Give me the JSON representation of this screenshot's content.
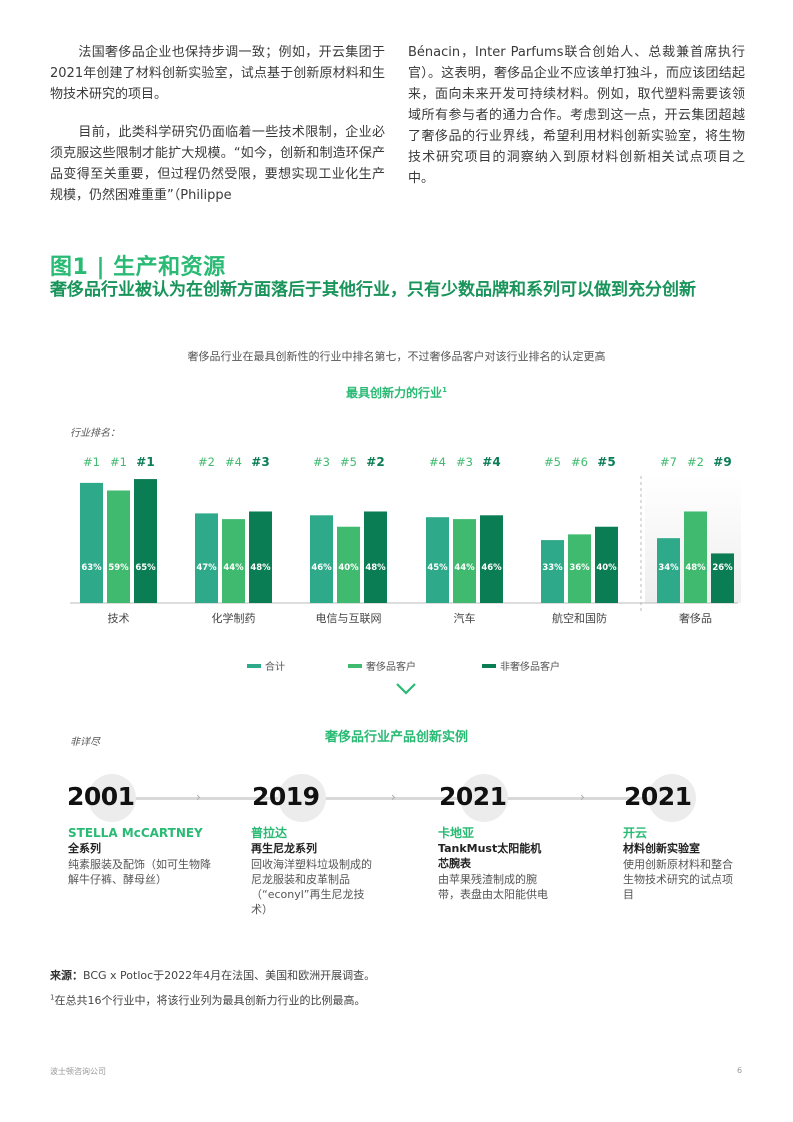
{
  "text": {
    "para_left_1": "法国奢侈品企业也保持步调一致；例如，开云集团于2021年创建了材料创新实验室，试点基于创新原材料和生物技术研究的项目。",
    "para_left_2": "目前，此类科学研究仍面临着一些技术限制，企业必须克服这些限制才能扩大规模。“如今，创新和制造环保产品变得至关重要，但过程仍然受限，要想实现工业化生产规模，仍然困难重重”（Philippe",
    "para_right": "Bénacin，Inter Parfums联合创始人、总裁兼首席执行官）。这表明，奢侈品企业不应该单打独斗，而应该团结起来，面向未来开发可持续材料。例如，取代塑料需要该领域所有参与者的通力合作。考虑到这一点，开云集团超越了奢侈品的行业界线，希望利用材料创新实验室，将生物技术研究项目的洞察纳入到原材料创新相关试点项目之中。"
  },
  "figure": {
    "title": "图1 | 生产和资源",
    "subtitle": "奢侈品行业被认为在创新方面落后于其他行业，只有少数品牌和系列可以做到充分创新",
    "caption": "奢侈品行业在最具创新性的行业中排名第七，不过奢侈品客户对该行业排名的认定更高",
    "chart_heading": "最具创新力的行业",
    "chart_heading_sup": "1",
    "rank_label": "行业排名："
  },
  "chart_data": {
    "type": "bar",
    "title": "最具创新力的行业",
    "categories": [
      "技术",
      "化学制药",
      "电信与互联网",
      "汽车",
      "航空和国防",
      "奢侈品"
    ],
    "series": [
      {
        "name": "合计",
        "color": "#2eaa8a",
        "values": [
          63,
          47,
          46,
          45,
          33,
          34
        ],
        "ranks": [
          "#1",
          "#2",
          "#3",
          "#4",
          "#5",
          "#7"
        ]
      },
      {
        "name": "奢侈品客户",
        "color": "#3fba6e",
        "values": [
          59,
          44,
          40,
          44,
          36,
          48
        ],
        "ranks": [
          "#1",
          "#4",
          "#5",
          "#3",
          "#6",
          "#2"
        ]
      },
      {
        "name": "非奢侈品客户",
        "color": "#0b7d55",
        "values": [
          65,
          48,
          48,
          46,
          40,
          26
        ],
        "ranks": [
          "#1",
          "#3",
          "#2",
          "#4",
          "#5",
          "#9"
        ]
      }
    ],
    "value_labels": [
      [
        "63%",
        "47%",
        "46%",
        "45%",
        "33%",
        "34%"
      ],
      [
        "59%",
        "44%",
        "40%",
        "44%",
        "36%",
        "48%"
      ],
      [
        "65%",
        "48%",
        "48%",
        "46%",
        "40%",
        "26%"
      ]
    ],
    "ylim": [
      0,
      75
    ],
    "highlight_category": "奢侈品",
    "legend_position": "bottom"
  },
  "examples": {
    "non_exhaustive": "非详尽",
    "heading": "奢侈品行业产品创新实例",
    "items": [
      {
        "year": "2001",
        "brand": "STELLA McCARTNEY",
        "product": "全系列",
        "desc": "纯素服装及配饰（如可生物降解牛仔裤、酵母丝）"
      },
      {
        "year": "2019",
        "brand": "普拉达",
        "product": "再生尼龙系列",
        "desc": "回收海洋塑料垃圾制成的尼龙服装和皮革制品（“econyl”再生尼龙技术）"
      },
      {
        "year": "2021",
        "brand": "卡地亚",
        "product": "TankMust太阳能机芯腕表",
        "desc": "由苹果残渣制成的腕带，表盘由太阳能供电"
      },
      {
        "year": "2021",
        "brand": "开云",
        "product": "材料创新实验室",
        "desc": "使用创新原材料和整合生物技术研究的试点项目"
      }
    ]
  },
  "source": {
    "label": "来源：",
    "text": "BCG x Potloc于2022年4月在法国、美国和欧洲开展调查。"
  },
  "footnote": {
    "mark": "1",
    "text": "在总共16个行业中，将该行业列为最具创新力行业的比例最高。"
  },
  "footer": {
    "company": "波士顿咨询公司",
    "page": "6"
  }
}
